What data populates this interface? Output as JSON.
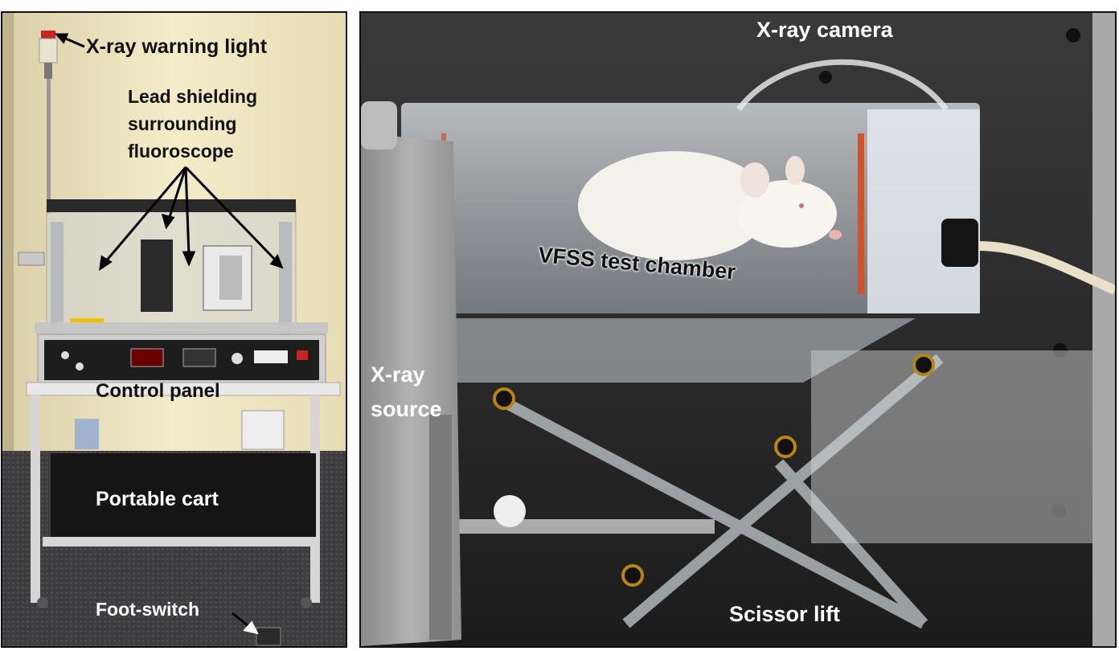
{
  "left_panel": {
    "labels": {
      "warning_light": "X-ray warning light",
      "lead_shielding": [
        "Lead shielding",
        "surrounding",
        "fluoroscope"
      ],
      "control_panel": "Control panel",
      "portable_cart": "Portable cart",
      "foot_switch": "Foot-switch"
    }
  },
  "right_panel": {
    "labels": {
      "xray_camera": "X-ray camera",
      "test_chamber": "VFSS test chamber",
      "xray_source": [
        "X-ray",
        "source"
      ],
      "scissor_lift": "Scissor lift"
    }
  },
  "colors": {
    "arrow": "#000000",
    "wall_left": "#efe6c2",
    "background_right": "#2b2b2b"
  }
}
